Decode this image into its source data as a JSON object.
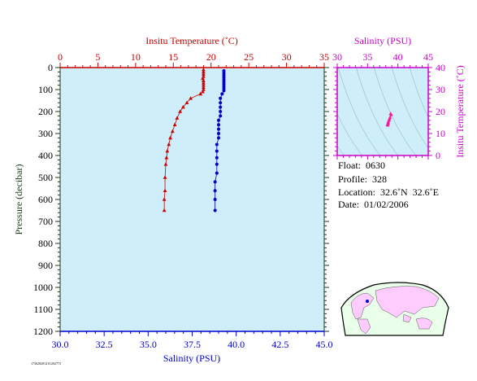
{
  "colors": {
    "temperature": "#cc0000",
    "salinity": "#0000cc",
    "inset_axis": "#cc00cc",
    "plot_bg": "#cdeefa",
    "label_dark": "#1a3a1a"
  },
  "float_info": {
    "float": "Float:  0630",
    "profile": "Profile:  328",
    "location": "Location:  32.6˚N  32.6˚E",
    "date": "Date:  01/02/2006"
  },
  "footer_stamp": "1736282014 01202772",
  "chart_data": [
    {
      "type": "line",
      "name": "profile-plot",
      "ylabel": "Pressure (decibar)",
      "ylim": [
        1200,
        0
      ],
      "yticks": [
        0,
        100,
        200,
        300,
        400,
        500,
        600,
        700,
        800,
        900,
        1000,
        1100,
        1200
      ],
      "top_axis": {
        "label": "Insitu Temperature (˚C)",
        "lim": [
          0,
          35
        ],
        "ticks": [
          0,
          5,
          10,
          15,
          20,
          25,
          30,
          35
        ]
      },
      "bottom_axis": {
        "label": "Salinity (PSU)",
        "lim": [
          30,
          45
        ],
        "ticks": [
          "30.0",
          "32.5",
          "35.0",
          "37.5",
          "40.0",
          "42.5",
          "45.0"
        ]
      },
      "series": [
        {
          "axis": "temperature",
          "marker": "triangle",
          "points": [
            [
              19.0,
              10
            ],
            [
              19.0,
              20
            ],
            [
              19.0,
              30
            ],
            [
              19.0,
              40
            ],
            [
              18.9,
              50
            ],
            [
              19.0,
              60
            ],
            [
              19.0,
              70
            ],
            [
              19.0,
              80
            ],
            [
              19.0,
              90
            ],
            [
              19.0,
              100
            ],
            [
              18.9,
              110
            ],
            [
              18.6,
              120
            ],
            [
              17.3,
              140
            ],
            [
              16.8,
              160
            ],
            [
              16.3,
              180
            ],
            [
              15.9,
              200
            ],
            [
              15.5,
              230
            ],
            [
              15.2,
              260
            ],
            [
              14.9,
              290
            ],
            [
              14.6,
              320
            ],
            [
              14.4,
              350
            ],
            [
              14.2,
              380
            ],
            [
              14.1,
              410
            ],
            [
              14.0,
              440
            ],
            [
              13.9,
              500
            ],
            [
              13.9,
              560
            ],
            [
              13.8,
              600
            ],
            [
              13.8,
              650
            ]
          ]
        },
        {
          "axis": "salinity",
          "marker": "circle",
          "points": [
            [
              39.3,
              15
            ],
            [
              39.3,
              25
            ],
            [
              39.3,
              35
            ],
            [
              39.3,
              45
            ],
            [
              39.3,
              55
            ],
            [
              39.3,
              65
            ],
            [
              39.3,
              75
            ],
            [
              39.3,
              85
            ],
            [
              39.3,
              95
            ],
            [
              39.3,
              105
            ],
            [
              39.2,
              120
            ],
            [
              39.1,
              140
            ],
            [
              39.1,
              160
            ],
            [
              39.1,
              180
            ],
            [
              39.1,
              200
            ],
            [
              39.1,
              220
            ],
            [
              39.0,
              240
            ],
            [
              39.0,
              260
            ],
            [
              39.0,
              280
            ],
            [
              39.0,
              300
            ],
            [
              39.0,
              320
            ],
            [
              38.9,
              350
            ],
            [
              38.9,
              380
            ],
            [
              38.9,
              410
            ],
            [
              38.9,
              440
            ],
            [
              38.9,
              480
            ],
            [
              38.8,
              520
            ],
            [
              38.8,
              560
            ],
            [
              38.8,
              600
            ],
            [
              38.8,
              650
            ]
          ]
        }
      ]
    },
    {
      "type": "scatter",
      "name": "ts-inset",
      "xlabel": "Salinity (PSU)",
      "ylabel": "Insitu Temperature (˚C)",
      "xlim": [
        30,
        45
      ],
      "ylim": [
        0,
        40
      ],
      "xticks": [
        30,
        35,
        40,
        45
      ],
      "yticks": [
        0,
        10,
        20,
        30,
        40
      ],
      "points": [
        [
          38.8,
          19.0
        ],
        [
          38.9,
          18.6
        ],
        [
          38.7,
          17.3
        ],
        [
          38.6,
          16.5
        ],
        [
          38.5,
          15.9
        ],
        [
          38.4,
          15.2
        ],
        [
          38.4,
          14.6
        ],
        [
          38.3,
          14.2
        ],
        [
          38.3,
          13.9
        ],
        [
          38.3,
          13.8
        ]
      ]
    }
  ]
}
